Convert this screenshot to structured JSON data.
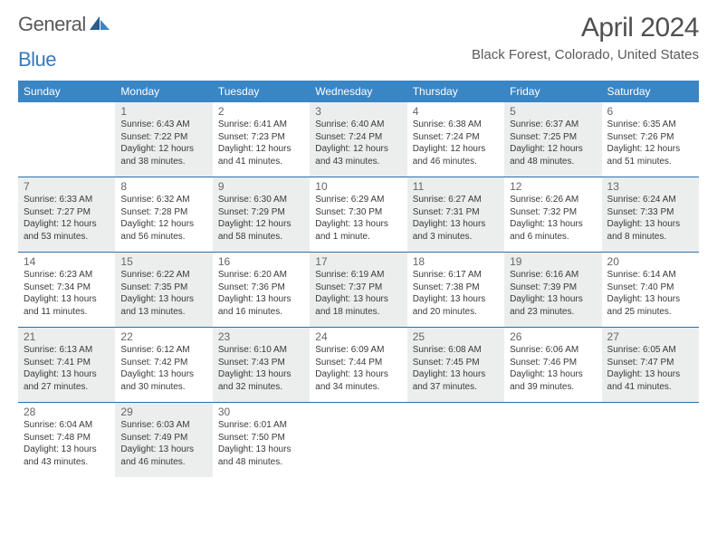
{
  "brand": {
    "general": "General",
    "blue": "Blue"
  },
  "title": "April 2024",
  "location": "Black Forest, Colorado, United States",
  "colors": {
    "header_bg": "#3a85c4",
    "header_text": "#ffffff",
    "shaded_bg": "#eceded",
    "week_divider": "#2d6fa8",
    "logo_blue": "#3a7ab8",
    "logo_dark": "#2a5b8a"
  },
  "weekdays": [
    "Sunday",
    "Monday",
    "Tuesday",
    "Wednesday",
    "Thursday",
    "Friday",
    "Saturday"
  ],
  "weeks": [
    [
      {
        "blank": true,
        "shaded": false
      },
      {
        "day": "1",
        "shaded": true,
        "lines": [
          "Sunrise: 6:43 AM",
          "Sunset: 7:22 PM",
          "Daylight: 12 hours",
          "and 38 minutes."
        ]
      },
      {
        "day": "2",
        "shaded": false,
        "lines": [
          "Sunrise: 6:41 AM",
          "Sunset: 7:23 PM",
          "Daylight: 12 hours",
          "and 41 minutes."
        ]
      },
      {
        "day": "3",
        "shaded": true,
        "lines": [
          "Sunrise: 6:40 AM",
          "Sunset: 7:24 PM",
          "Daylight: 12 hours",
          "and 43 minutes."
        ]
      },
      {
        "day": "4",
        "shaded": false,
        "lines": [
          "Sunrise: 6:38 AM",
          "Sunset: 7:24 PM",
          "Daylight: 12 hours",
          "and 46 minutes."
        ]
      },
      {
        "day": "5",
        "shaded": true,
        "lines": [
          "Sunrise: 6:37 AM",
          "Sunset: 7:25 PM",
          "Daylight: 12 hours",
          "and 48 minutes."
        ]
      },
      {
        "day": "6",
        "shaded": false,
        "lines": [
          "Sunrise: 6:35 AM",
          "Sunset: 7:26 PM",
          "Daylight: 12 hours",
          "and 51 minutes."
        ]
      }
    ],
    [
      {
        "day": "7",
        "shaded": true,
        "lines": [
          "Sunrise: 6:33 AM",
          "Sunset: 7:27 PM",
          "Daylight: 12 hours",
          "and 53 minutes."
        ]
      },
      {
        "day": "8",
        "shaded": false,
        "lines": [
          "Sunrise: 6:32 AM",
          "Sunset: 7:28 PM",
          "Daylight: 12 hours",
          "and 56 minutes."
        ]
      },
      {
        "day": "9",
        "shaded": true,
        "lines": [
          "Sunrise: 6:30 AM",
          "Sunset: 7:29 PM",
          "Daylight: 12 hours",
          "and 58 minutes."
        ]
      },
      {
        "day": "10",
        "shaded": false,
        "lines": [
          "Sunrise: 6:29 AM",
          "Sunset: 7:30 PM",
          "Daylight: 13 hours",
          "and 1 minute."
        ]
      },
      {
        "day": "11",
        "shaded": true,
        "lines": [
          "Sunrise: 6:27 AM",
          "Sunset: 7:31 PM",
          "Daylight: 13 hours",
          "and 3 minutes."
        ]
      },
      {
        "day": "12",
        "shaded": false,
        "lines": [
          "Sunrise: 6:26 AM",
          "Sunset: 7:32 PM",
          "Daylight: 13 hours",
          "and 6 minutes."
        ]
      },
      {
        "day": "13",
        "shaded": true,
        "lines": [
          "Sunrise: 6:24 AM",
          "Sunset: 7:33 PM",
          "Daylight: 13 hours",
          "and 8 minutes."
        ]
      }
    ],
    [
      {
        "day": "14",
        "shaded": false,
        "lines": [
          "Sunrise: 6:23 AM",
          "Sunset: 7:34 PM",
          "Daylight: 13 hours",
          "and 11 minutes."
        ]
      },
      {
        "day": "15",
        "shaded": true,
        "lines": [
          "Sunrise: 6:22 AM",
          "Sunset: 7:35 PM",
          "Daylight: 13 hours",
          "and 13 minutes."
        ]
      },
      {
        "day": "16",
        "shaded": false,
        "lines": [
          "Sunrise: 6:20 AM",
          "Sunset: 7:36 PM",
          "Daylight: 13 hours",
          "and 16 minutes."
        ]
      },
      {
        "day": "17",
        "shaded": true,
        "lines": [
          "Sunrise: 6:19 AM",
          "Sunset: 7:37 PM",
          "Daylight: 13 hours",
          "and 18 minutes."
        ]
      },
      {
        "day": "18",
        "shaded": false,
        "lines": [
          "Sunrise: 6:17 AM",
          "Sunset: 7:38 PM",
          "Daylight: 13 hours",
          "and 20 minutes."
        ]
      },
      {
        "day": "19",
        "shaded": true,
        "lines": [
          "Sunrise: 6:16 AM",
          "Sunset: 7:39 PM",
          "Daylight: 13 hours",
          "and 23 minutes."
        ]
      },
      {
        "day": "20",
        "shaded": false,
        "lines": [
          "Sunrise: 6:14 AM",
          "Sunset: 7:40 PM",
          "Daylight: 13 hours",
          "and 25 minutes."
        ]
      }
    ],
    [
      {
        "day": "21",
        "shaded": true,
        "lines": [
          "Sunrise: 6:13 AM",
          "Sunset: 7:41 PM",
          "Daylight: 13 hours",
          "and 27 minutes."
        ]
      },
      {
        "day": "22",
        "shaded": false,
        "lines": [
          "Sunrise: 6:12 AM",
          "Sunset: 7:42 PM",
          "Daylight: 13 hours",
          "and 30 minutes."
        ]
      },
      {
        "day": "23",
        "shaded": true,
        "lines": [
          "Sunrise: 6:10 AM",
          "Sunset: 7:43 PM",
          "Daylight: 13 hours",
          "and 32 minutes."
        ]
      },
      {
        "day": "24",
        "shaded": false,
        "lines": [
          "Sunrise: 6:09 AM",
          "Sunset: 7:44 PM",
          "Daylight: 13 hours",
          "and 34 minutes."
        ]
      },
      {
        "day": "25",
        "shaded": true,
        "lines": [
          "Sunrise: 6:08 AM",
          "Sunset: 7:45 PM",
          "Daylight: 13 hours",
          "and 37 minutes."
        ]
      },
      {
        "day": "26",
        "shaded": false,
        "lines": [
          "Sunrise: 6:06 AM",
          "Sunset: 7:46 PM",
          "Daylight: 13 hours",
          "and 39 minutes."
        ]
      },
      {
        "day": "27",
        "shaded": true,
        "lines": [
          "Sunrise: 6:05 AM",
          "Sunset: 7:47 PM",
          "Daylight: 13 hours",
          "and 41 minutes."
        ]
      }
    ],
    [
      {
        "day": "28",
        "shaded": false,
        "lines": [
          "Sunrise: 6:04 AM",
          "Sunset: 7:48 PM",
          "Daylight: 13 hours",
          "and 43 minutes."
        ]
      },
      {
        "day": "29",
        "shaded": true,
        "lines": [
          "Sunrise: 6:03 AM",
          "Sunset: 7:49 PM",
          "Daylight: 13 hours",
          "and 46 minutes."
        ]
      },
      {
        "day": "30",
        "shaded": false,
        "lines": [
          "Sunrise: 6:01 AM",
          "Sunset: 7:50 PM",
          "Daylight: 13 hours",
          "and 48 minutes."
        ]
      },
      {
        "blank": true,
        "shaded": false
      },
      {
        "blank": true,
        "shaded": false
      },
      {
        "blank": true,
        "shaded": false
      },
      {
        "blank": true,
        "shaded": false
      }
    ]
  ]
}
